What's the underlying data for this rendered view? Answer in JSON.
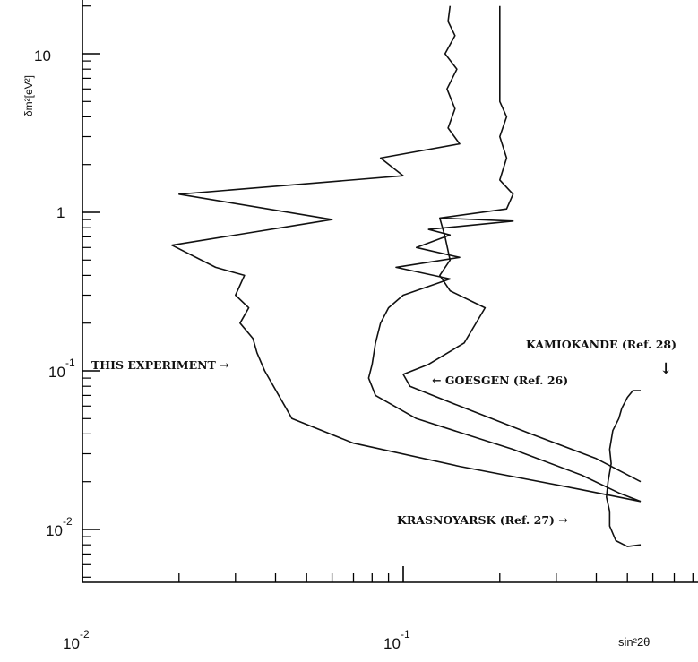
{
  "chart_data": {
    "type": "line",
    "title": "",
    "xlabel": "sin²2θ",
    "ylabel": "δm²[eV²]",
    "x_scale": "log",
    "y_scale": "log",
    "xlim": [
      0.01,
      0.55
    ],
    "ylim": [
      0.003,
      20
    ],
    "grid": false,
    "x_tick_labels": [
      {
        "value": 0.01,
        "base": "10",
        "exp": "-2"
      },
      {
        "value": 0.1,
        "base": "10",
        "exp": "-1"
      }
    ],
    "y_tick_labels": [
      {
        "value": 0.01,
        "base": "10",
        "exp": "-2"
      },
      {
        "value": 0.1,
        "base": "10",
        "exp": "-1"
      },
      {
        "value": 1,
        "base": "1",
        "exp": ""
      },
      {
        "value": 10,
        "base": "10",
        "exp": ""
      }
    ],
    "annotations": [
      {
        "text": "THIS EXPERIMENT →",
        "series": "THIS EXPERIMENT"
      },
      {
        "text": "← GOESGEN (Ref. 26)",
        "series": "GOESGEN (Ref. 26)"
      },
      {
        "text": "KRASNOYARSK (Ref. 27) →",
        "series": "KRASNOYARSK (Ref. 27)"
      },
      {
        "text": "KAMIOKANDE (Ref. 28)",
        "series": "KAMIOKANDE (Ref. 28)"
      },
      {
        "text": "↓",
        "series": "KAMIOKANDE (Ref. 28)"
      }
    ],
    "series": [
      {
        "name": "THIS EXPERIMENT",
        "points": [
          [
            0.14,
            20
          ],
          [
            0.138,
            16
          ],
          [
            0.145,
            13
          ],
          [
            0.135,
            10
          ],
          [
            0.147,
            8
          ],
          [
            0.137,
            6
          ],
          [
            0.145,
            4.5
          ],
          [
            0.138,
            3.4
          ],
          [
            0.15,
            2.7
          ],
          [
            0.085,
            2.2
          ],
          [
            0.1,
            1.7
          ],
          [
            0.02,
            1.3
          ],
          [
            0.06,
            0.9
          ],
          [
            0.019,
            0.62
          ],
          [
            0.026,
            0.45
          ],
          [
            0.032,
            0.4
          ],
          [
            0.03,
            0.3
          ],
          [
            0.033,
            0.25
          ],
          [
            0.031,
            0.2
          ],
          [
            0.034,
            0.16
          ],
          [
            0.035,
            0.13
          ],
          [
            0.037,
            0.1
          ],
          [
            0.045,
            0.05
          ],
          [
            0.07,
            0.035
          ],
          [
            0.15,
            0.025
          ],
          [
            0.35,
            0.018
          ],
          [
            0.55,
            0.015
          ]
        ]
      },
      {
        "name": "GOESGEN (Ref. 26)",
        "points": [
          [
            0.2,
            20
          ],
          [
            0.2,
            5
          ],
          [
            0.21,
            4
          ],
          [
            0.2,
            3
          ],
          [
            0.21,
            2.2
          ],
          [
            0.2,
            1.6
          ],
          [
            0.22,
            1.3
          ],
          [
            0.21,
            1.05
          ],
          [
            0.13,
            0.92
          ],
          [
            0.22,
            0.88
          ],
          [
            0.12,
            0.78
          ],
          [
            0.14,
            0.72
          ],
          [
            0.11,
            0.6
          ],
          [
            0.15,
            0.52
          ],
          [
            0.095,
            0.45
          ],
          [
            0.14,
            0.38
          ],
          [
            0.1,
            0.3
          ],
          [
            0.09,
            0.25
          ],
          [
            0.085,
            0.2
          ],
          [
            0.082,
            0.15
          ],
          [
            0.08,
            0.11
          ],
          [
            0.078,
            0.09
          ],
          [
            0.082,
            0.07
          ],
          [
            0.11,
            0.05
          ],
          [
            0.22,
            0.032
          ],
          [
            0.36,
            0.022
          ],
          [
            0.47,
            0.017
          ],
          [
            0.55,
            0.015
          ]
        ]
      },
      {
        "name": "KRASNOYARSK (Ref. 27)",
        "points": [
          [
            0.13,
            0.92
          ],
          [
            0.135,
            0.7
          ],
          [
            0.14,
            0.5
          ],
          [
            0.13,
            0.4
          ],
          [
            0.14,
            0.32
          ],
          [
            0.18,
            0.25
          ],
          [
            0.155,
            0.15
          ],
          [
            0.12,
            0.11
          ],
          [
            0.1,
            0.095
          ],
          [
            0.105,
            0.08
          ],
          [
            0.15,
            0.06
          ],
          [
            0.25,
            0.04
          ],
          [
            0.4,
            0.028
          ],
          [
            0.55,
            0.02
          ]
        ]
      },
      {
        "name": "KAMIOKANDE (Ref. 28)",
        "points": [
          [
            0.55,
            0.008
          ],
          [
            0.5,
            0.0078
          ],
          [
            0.46,
            0.0085
          ],
          [
            0.44,
            0.0105
          ],
          [
            0.44,
            0.013
          ],
          [
            0.43,
            0.016
          ],
          [
            0.435,
            0.02
          ],
          [
            0.445,
            0.026
          ],
          [
            0.44,
            0.032
          ],
          [
            0.45,
            0.042
          ],
          [
            0.47,
            0.05
          ],
          [
            0.48,
            0.058
          ],
          [
            0.5,
            0.068
          ],
          [
            0.52,
            0.075
          ],
          [
            0.55,
            0.075
          ]
        ]
      }
    ]
  }
}
